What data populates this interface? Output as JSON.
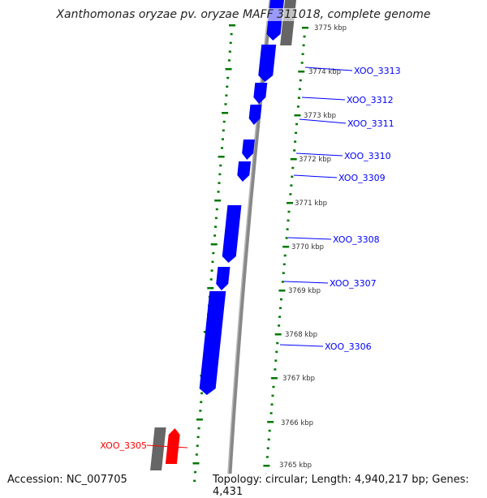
{
  "title": "Xanthomonas oryzae pv. oryzae MAFF 311018, complete genome",
  "accession": "Accession: NC_007705",
  "summary": "Topology: circular; Length: 4,940,217 bp; Genes: 4,431",
  "colors": {
    "forward": "#0000ff",
    "highlight": "#ff0000",
    "other": "#666666",
    "ticks": "#007700"
  },
  "kbp_labels": [
    "3775 kbp",
    "3774 kbp",
    "3773 kbp",
    "3772 kbp",
    "3771 kbp",
    "3770 kbp",
    "3769 kbp",
    "3768 kbp",
    "3767 kbp",
    "3766 kbp",
    "3765 kbp"
  ],
  "genes": [
    {
      "label": "XOO_3313"
    },
    {
      "label": "XOO_3312"
    },
    {
      "label": "XOO_3311"
    },
    {
      "label": "XOO_3310"
    },
    {
      "label": "XOO_3309"
    },
    {
      "label": "XOO_3308"
    },
    {
      "label": "XOO_3307"
    },
    {
      "label": "XOO_3306"
    },
    {
      "label": "XOO_3305",
      "highlight": true
    }
  ]
}
